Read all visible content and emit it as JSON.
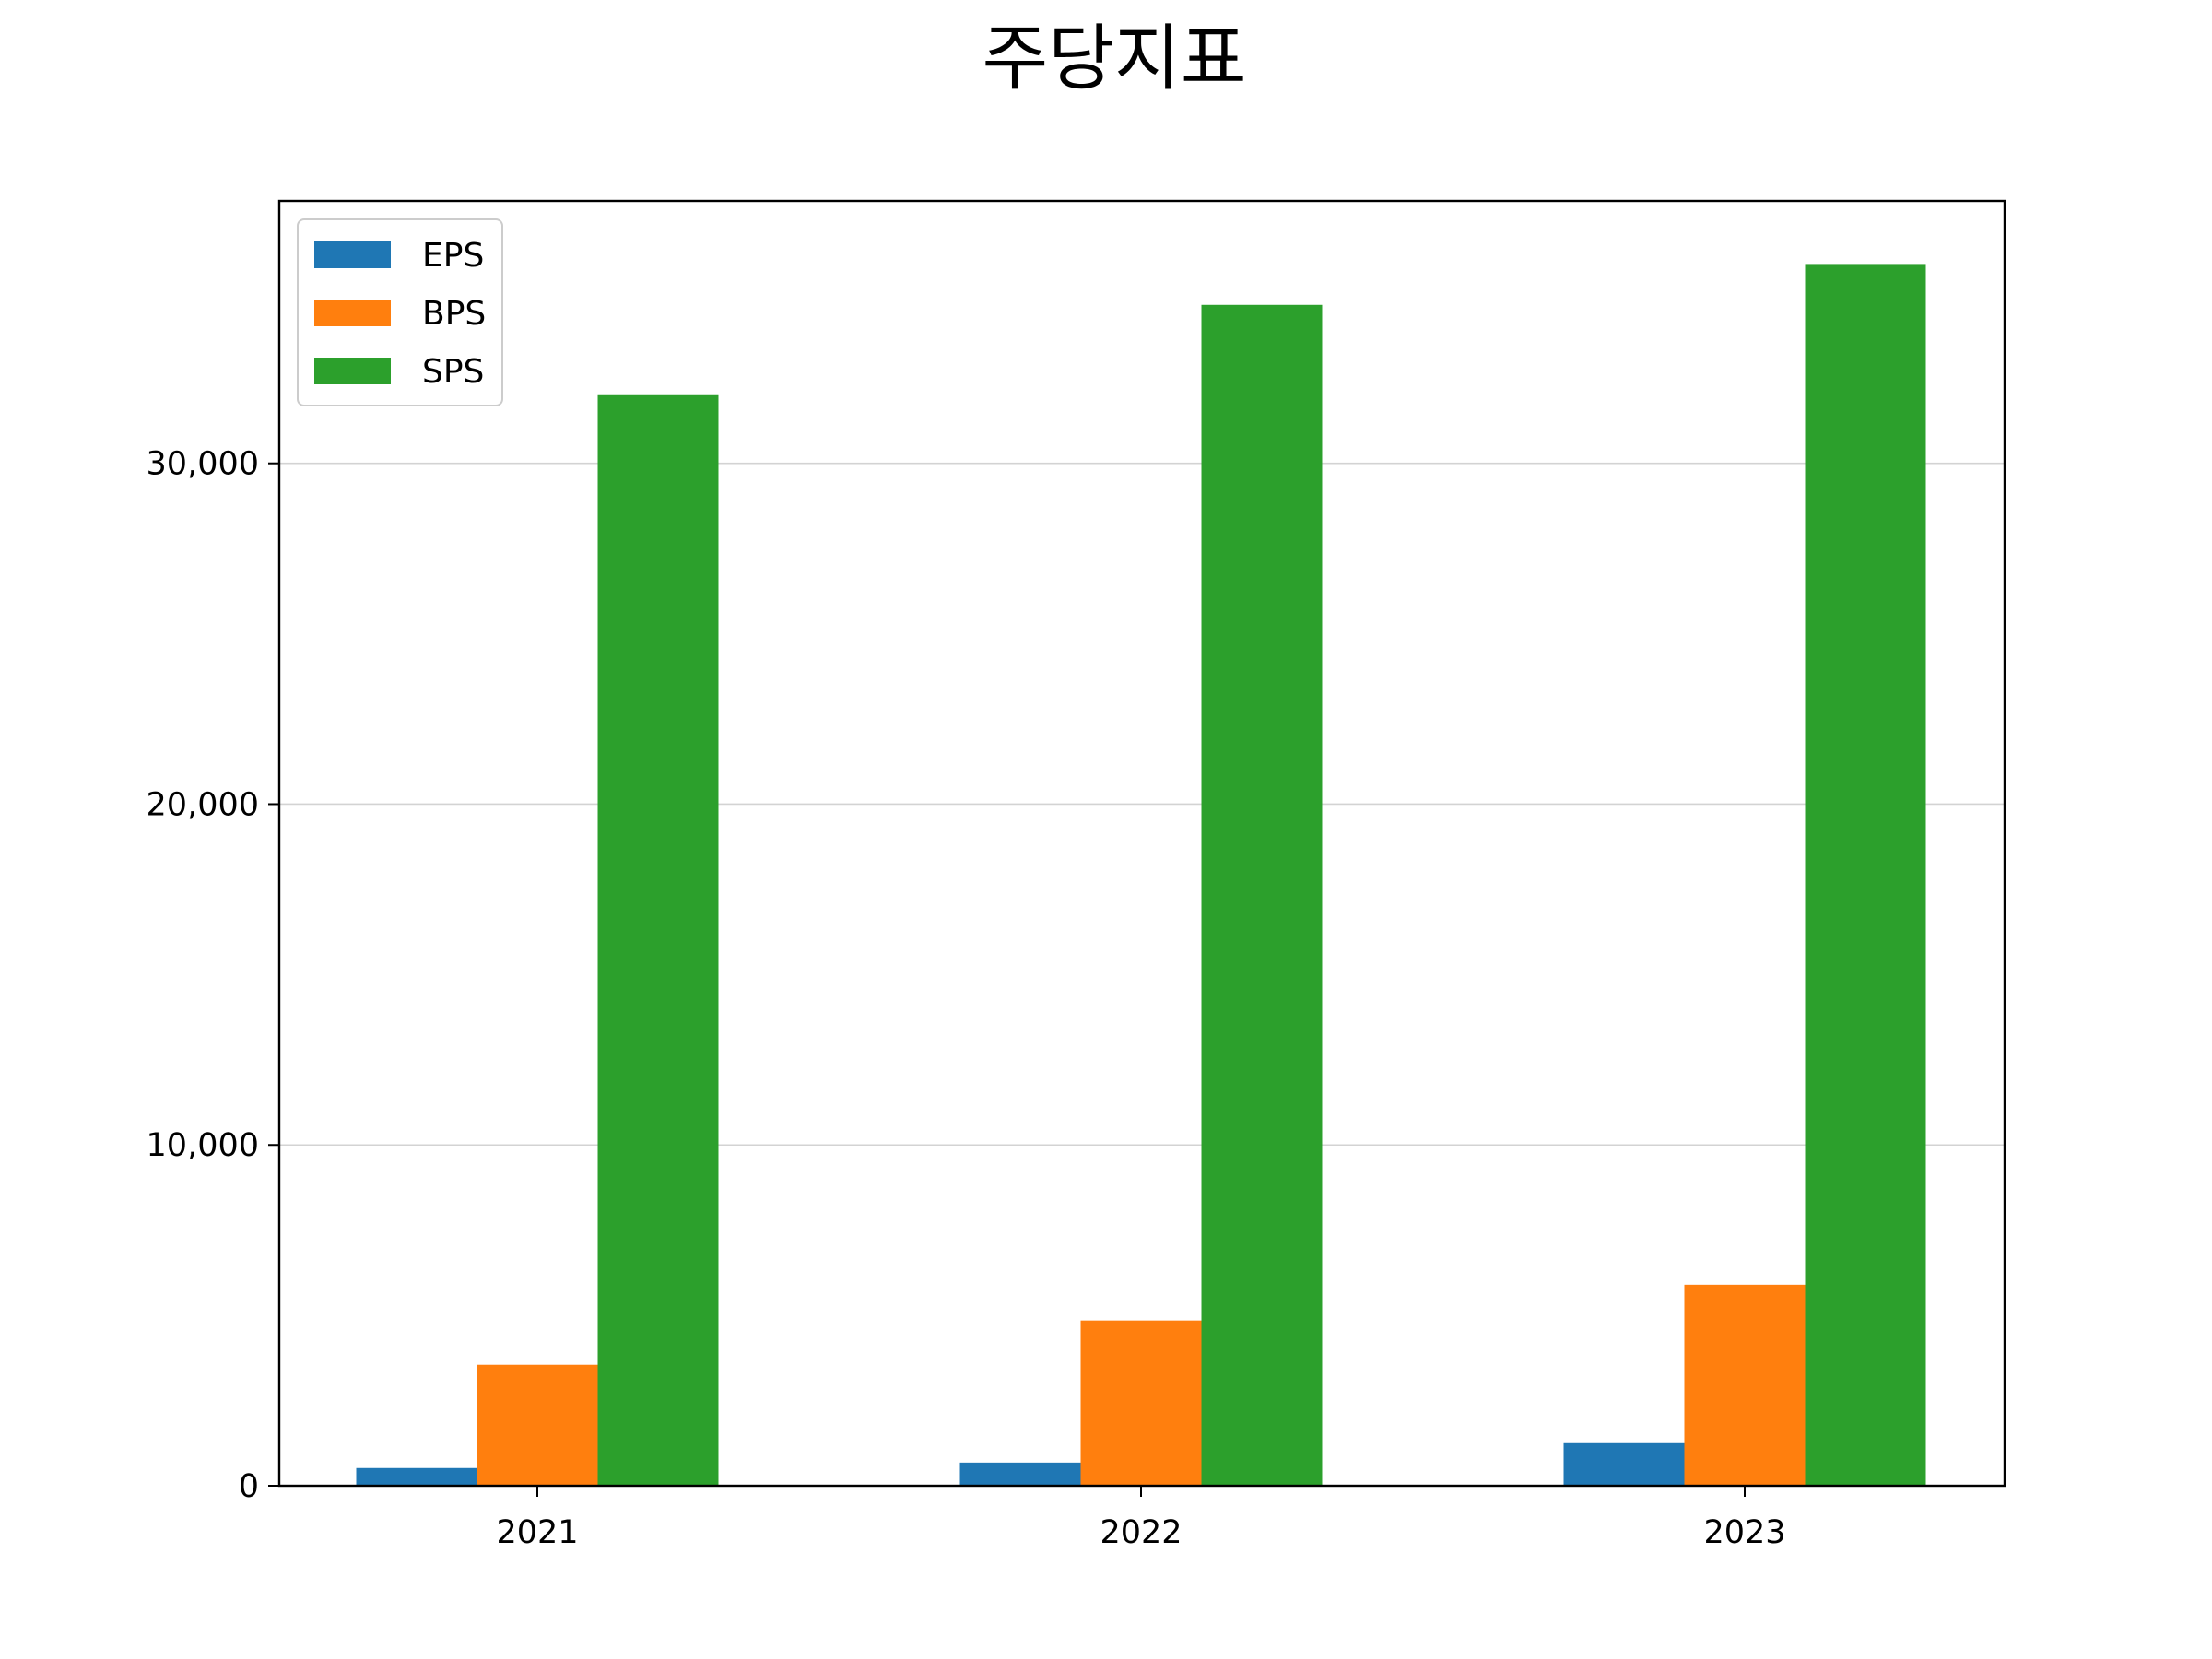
{
  "chart_data": {
    "type": "bar",
    "title": "주당지표",
    "xlabel": "",
    "ylabel": "",
    "categories": [
      "2021",
      "2022",
      "2023"
    ],
    "series": [
      {
        "name": "EPS",
        "color": "#1f77b4",
        "values": [
          520,
          680,
          1250
        ]
      },
      {
        "name": "BPS",
        "color": "#ff7f0e",
        "values": [
          3550,
          4850,
          5900
        ]
      },
      {
        "name": "SPS",
        "color": "#2ca02c",
        "values": [
          32000,
          34650,
          35850
        ]
      }
    ],
    "ylim": [
      0,
      37700
    ],
    "yticks": [
      {
        "value": 0,
        "label": "0"
      },
      {
        "value": 10000,
        "label": "10,000"
      },
      {
        "value": 20000,
        "label": "20,000"
      },
      {
        "value": 30000,
        "label": "30,000"
      }
    ],
    "grid": {
      "axis": "y",
      "color": "#d3d3d3"
    },
    "legend": {
      "position": "top-left"
    }
  }
}
